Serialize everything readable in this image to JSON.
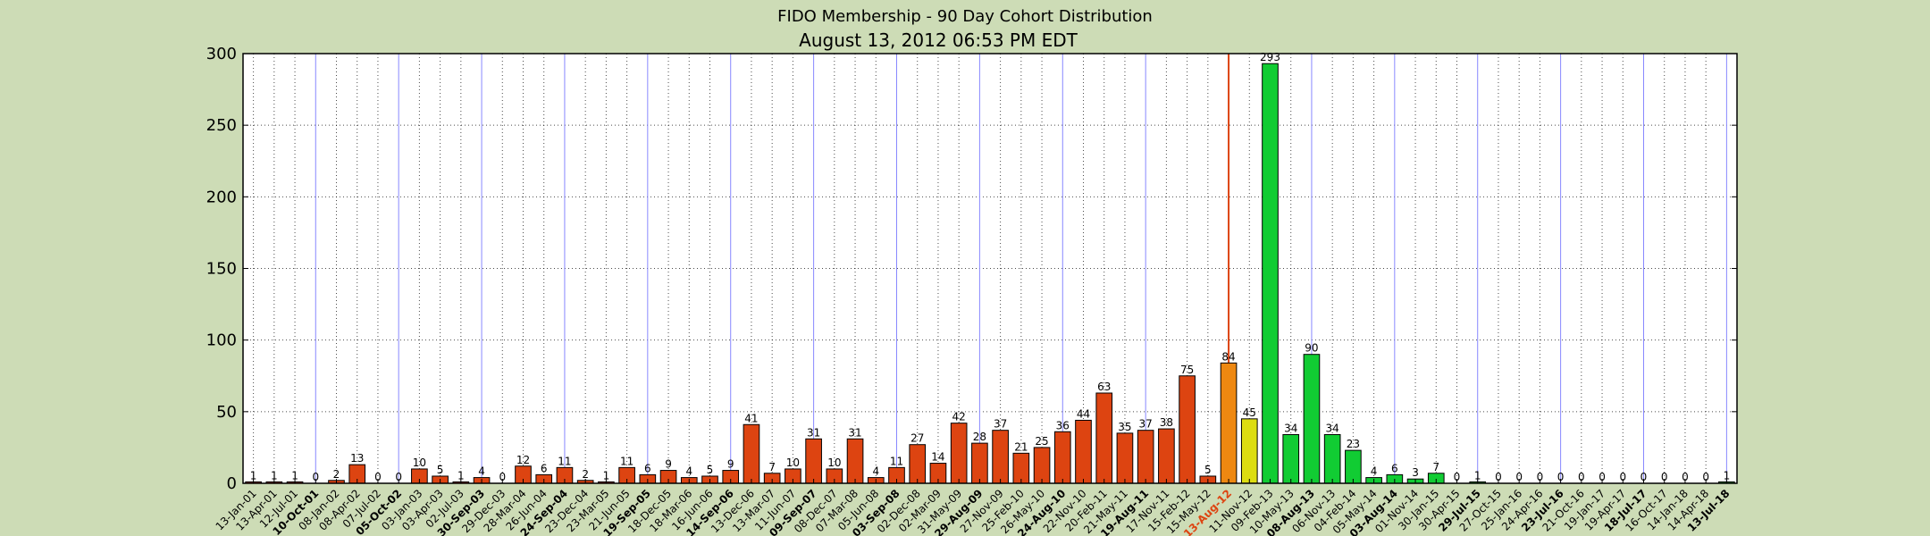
{
  "chart_data": {
    "type": "bar",
    "title": "FIDO Membership - 90 Day Cohort Distribution",
    "subtitle": "August 13, 2012 06:53 PM EDT",
    "xlabel": "",
    "ylabel": "",
    "ylim": [
      0,
      300
    ],
    "yticks": [
      "0",
      "50",
      "100",
      "150",
      "200",
      "250",
      "300"
    ],
    "grid": true,
    "legend": "none",
    "colors": {
      "background": "#cddcb6",
      "past": "#dd4411",
      "current": "#ee8811",
      "next": "#dddd11",
      "future": "#11cc33",
      "today_line": "#dd4411",
      "year_line": "#8888ff",
      "today_label": "#dd4411"
    },
    "categories": [
      "13-Jan-01",
      "13-Apr-01",
      "12-Jul-01",
      "10-Oct-01",
      "08-Jan-02",
      "08-Apr-02",
      "07-Jul-02",
      "05-Oct-02",
      "03-Jan-03",
      "03-Apr-03",
      "02-Jul-03",
      "30-Sep-03",
      "29-Dec-03",
      "28-Mar-04",
      "26-Jun-04",
      "24-Sep-04",
      "23-Dec-04",
      "23-Mar-05",
      "21-Jun-05",
      "19-Sep-05",
      "18-Dec-05",
      "18-Mar-06",
      "16-Jun-06",
      "14-Sep-06",
      "13-Dec-06",
      "13-Mar-07",
      "11-Jun-07",
      "09-Sep-07",
      "08-Dec-07",
      "07-Mar-08",
      "05-Jun-08",
      "03-Sep-08",
      "02-Dec-08",
      "02-Mar-09",
      "31-May-09",
      "29-Aug-09",
      "27-Nov-09",
      "25-Feb-10",
      "26-May-10",
      "24-Aug-10",
      "22-Nov-10",
      "20-Feb-11",
      "21-May-11",
      "19-Aug-11",
      "17-Nov-11",
      "15-Feb-12",
      "15-May-12",
      "13-Aug-12",
      "11-Nov-12",
      "09-Feb-13",
      "10-May-13",
      "08-Aug-13",
      "06-Nov-13",
      "04-Feb-14",
      "05-May-14",
      "03-Aug-14",
      "01-Nov-14",
      "30-Jan-15",
      "30-Apr-15",
      "29-Jul-15",
      "27-Oct-15",
      "25-Jan-16",
      "24-Apr-16",
      "23-Jul-16",
      "21-Oct-16",
      "19-Jan-17",
      "19-Apr-17",
      "18-Jul-17",
      "16-Oct-17",
      "14-Jan-18",
      "14-Apr-18",
      "13-Jul-18"
    ],
    "values": [
      1,
      1,
      1,
      0,
      2,
      13,
      0,
      0,
      10,
      5,
      1,
      4,
      0,
      12,
      6,
      11,
      2,
      1,
      11,
      6,
      9,
      4,
      5,
      9,
      41,
      7,
      10,
      31,
      10,
      31,
      4,
      11,
      27,
      14,
      42,
      28,
      37,
      21,
      25,
      36,
      44,
      63,
      35,
      37,
      38,
      75,
      5,
      84,
      45,
      293,
      34,
      90,
      34,
      23,
      4,
      6,
      3,
      7,
      0,
      1,
      0,
      0,
      0,
      0,
      0,
      0,
      0,
      0,
      0,
      0,
      0,
      1
    ],
    "bold_categories": [
      "10-Oct-01",
      "05-Oct-02",
      "30-Sep-03",
      "24-Sep-04",
      "19-Sep-05",
      "14-Sep-06",
      "09-Sep-07",
      "03-Sep-08",
      "29-Aug-09",
      "24-Aug-10",
      "19-Aug-11",
      "13-Aug-12",
      "08-Aug-13",
      "03-Aug-14",
      "29-Jul-15",
      "23-Jul-16",
      "18-Jul-17",
      "13-Jul-18"
    ],
    "current_index": 47
  }
}
